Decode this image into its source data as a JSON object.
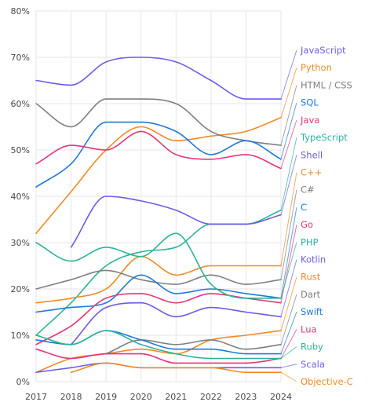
{
  "chart_data": {
    "type": "line",
    "title": "",
    "xlabel": "",
    "ylabel": "",
    "x": [
      2017,
      2018,
      2019,
      2020,
      2021,
      2022,
      2023,
      2024
    ],
    "ylim": [
      0,
      80
    ],
    "y_ticks": [
      "0%",
      "10%",
      "20%",
      "30%",
      "40%",
      "50%",
      "60%",
      "70%",
      "80%"
    ],
    "grid": true,
    "legend_position": "right",
    "series": [
      {
        "name": "JavaScript",
        "color": "#6b5ce7",
        "values": [
          65,
          64,
          69,
          70,
          69,
          65,
          61,
          61
        ]
      },
      {
        "name": "Python",
        "color": "#f08a24",
        "values": [
          32,
          41,
          50,
          55,
          52,
          53,
          54,
          57
        ]
      },
      {
        "name": "HTML / CSS",
        "color": "#7f7f7f",
        "values": [
          60,
          55,
          61,
          61,
          60,
          54,
          52,
          51
        ]
      },
      {
        "name": "SQL",
        "color": "#1e7ad8",
        "values": [
          42,
          47,
          56,
          56,
          54,
          49,
          52,
          48
        ]
      },
      {
        "name": "Java",
        "color": "#e4357a",
        "values": [
          47,
          51,
          50,
          54,
          49,
          48,
          49,
          46
        ]
      },
      {
        "name": "TypeScript",
        "color": "#2ab39a",
        "values": [
          10,
          17,
          25,
          28,
          29,
          34,
          34,
          37
        ]
      },
      {
        "name": "Shell",
        "color": "#6b5ce7",
        "values": [
          null,
          29,
          40,
          39,
          37,
          34,
          34,
          36
        ]
      },
      {
        "name": "C++",
        "color": "#f08a24",
        "values": [
          17,
          18,
          20,
          27,
          23,
          25,
          25,
          25
        ]
      },
      {
        "name": "C#",
        "color": "#7f7f7f",
        "values": [
          20,
          22,
          24,
          22,
          21,
          23,
          21,
          22
        ]
      },
      {
        "name": "C",
        "color": "#1e7ad8",
        "values": [
          15,
          16,
          17,
          23,
          19,
          20,
          19,
          18
        ]
      },
      {
        "name": "Go",
        "color": "#e4357a",
        "values": [
          8,
          12,
          18,
          19,
          17,
          19,
          18,
          17
        ]
      },
      {
        "name": "PHP",
        "color": "#2ab39a",
        "values": [
          30,
          26,
          29,
          27,
          32,
          21,
          18,
          18
        ]
      },
      {
        "name": "Kotlin",
        "color": "#6b5ce7",
        "values": [
          null,
          8,
          16,
          17,
          14,
          16,
          15,
          14
        ]
      },
      {
        "name": "Rust",
        "color": "#f08a24",
        "values": [
          2,
          5,
          6,
          7,
          6,
          9,
          10,
          11
        ]
      },
      {
        "name": "Dart",
        "color": "#7f7f7f",
        "values": [
          null,
          null,
          6,
          9,
          8,
          9,
          7,
          8
        ]
      },
      {
        "name": "Swift",
        "color": "#1e7ad8",
        "values": [
          9,
          8,
          11,
          9,
          7,
          7,
          6,
          6
        ]
      },
      {
        "name": "Lua",
        "color": "#e4357a",
        "values": [
          7,
          5,
          6,
          6,
          4,
          4,
          4,
          5
        ]
      },
      {
        "name": "Ruby",
        "color": "#2ab39a",
        "values": [
          10,
          8,
          11,
          8,
          6,
          5,
          5,
          5
        ]
      },
      {
        "name": "Scala",
        "color": "#6b5ce7",
        "values": [
          2,
          3,
          4,
          3,
          3,
          3,
          3,
          3
        ]
      },
      {
        "name": "Objective-C",
        "color": "#f08a24",
        "values": [
          null,
          2,
          4,
          3,
          3,
          3,
          2,
          2
        ]
      }
    ]
  }
}
